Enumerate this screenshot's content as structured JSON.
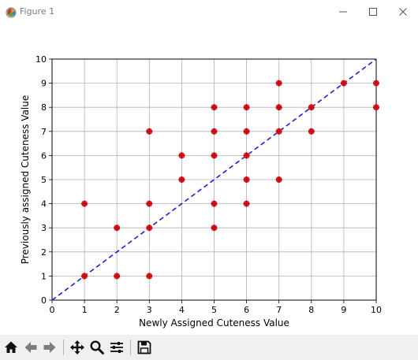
{
  "window": {
    "title": "Figure 1"
  },
  "toolbar": {
    "tools": [
      "home-icon",
      "back-icon",
      "forward-icon",
      "pan-icon",
      "zoom-icon",
      "configure-subplots-icon",
      "save-icon"
    ]
  },
  "chart_data": {
    "type": "scatter",
    "title": "",
    "xlabel": "Newly Assigned Cuteness Value",
    "ylabel": "Previously assigned Cuteness Value",
    "xlim": [
      0,
      10
    ],
    "ylim": [
      0,
      10
    ],
    "xticks": [
      "0",
      "1",
      "2",
      "3",
      "4",
      "5",
      "6",
      "7",
      "8",
      "9",
      "10"
    ],
    "yticks": [
      "0",
      "1",
      "2",
      "3",
      "4",
      "5",
      "6",
      "7",
      "8",
      "9",
      "10"
    ],
    "grid": true,
    "marker_color": "#e8141e",
    "marker_style": "circle-plus",
    "points": [
      [
        1,
        1
      ],
      [
        1,
        4
      ],
      [
        2,
        1
      ],
      [
        2,
        3
      ],
      [
        3,
        1
      ],
      [
        3,
        3
      ],
      [
        3,
        4
      ],
      [
        3,
        7
      ],
      [
        4,
        5
      ],
      [
        4,
        6
      ],
      [
        5,
        3
      ],
      [
        5,
        4
      ],
      [
        5,
        6
      ],
      [
        5,
        7
      ],
      [
        5,
        8
      ],
      [
        6,
        4
      ],
      [
        6,
        5
      ],
      [
        6,
        6
      ],
      [
        6,
        7
      ],
      [
        6,
        8
      ],
      [
        7,
        5
      ],
      [
        7,
        7
      ],
      [
        7,
        8
      ],
      [
        7,
        9
      ],
      [
        8,
        7
      ],
      [
        8,
        8
      ],
      [
        9,
        9
      ],
      [
        10,
        8
      ],
      [
        10,
        9
      ]
    ],
    "reference_line": {
      "style": "dashed",
      "color": "#1f1fd6",
      "from": [
        0,
        0
      ],
      "to": [
        10,
        10
      ]
    }
  }
}
